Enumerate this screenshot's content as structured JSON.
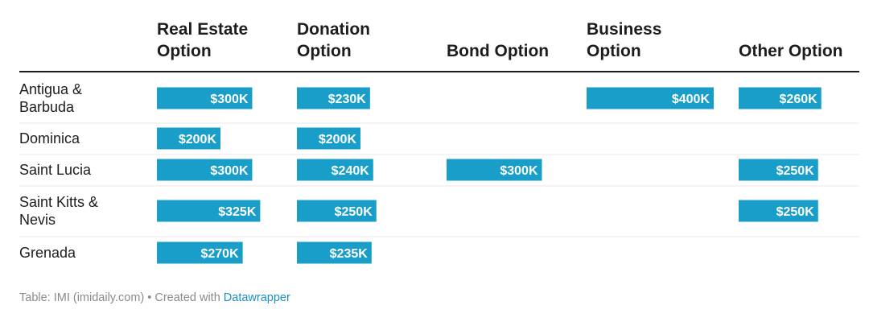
{
  "chart_data": {
    "type": "table",
    "columns": [
      {
        "label_lines": [
          "Real Estate",
          "Option"
        ]
      },
      {
        "label_lines": [
          "Donation",
          "Option"
        ]
      },
      {
        "label_lines": [
          "Bond Option"
        ]
      },
      {
        "label_lines": [
          "Business",
          "Option"
        ]
      },
      {
        "label_lines": [
          "Other Option"
        ]
      }
    ],
    "rows": [
      {
        "label_lines": [
          "Antigua &",
          "Barbuda"
        ],
        "values": [
          300,
          230,
          null,
          400,
          260
        ]
      },
      {
        "label_lines": [
          "Dominica"
        ],
        "values": [
          200,
          200,
          null,
          null,
          null
        ]
      },
      {
        "label_lines": [
          "Saint Lucia"
        ],
        "values": [
          300,
          240,
          300,
          null,
          250
        ]
      },
      {
        "label_lines": [
          "Saint Kitts &",
          "Nevis"
        ],
        "values": [
          325,
          250,
          null,
          null,
          250
        ]
      },
      {
        "label_lines": [
          "Grenada"
        ],
        "values": [
          270,
          235,
          null,
          null,
          null
        ]
      }
    ],
    "value_labels": [
      [
        "$300K",
        "$230K",
        "",
        "$400K",
        "$260K"
      ],
      [
        "$200K",
        "$200K",
        "",
        "",
        ""
      ],
      [
        "$300K",
        "$240K",
        "$300K",
        "",
        "$250K"
      ],
      [
        "$325K",
        "$250K",
        "",
        "",
        "$250K"
      ],
      [
        "$270K",
        "$235K",
        "",
        "",
        ""
      ]
    ],
    "unit": "thousand USD",
    "bar_color": "#189ec9"
  },
  "footer": {
    "source": "Table: IMI (imidaily.com) • Created with ",
    "tool": "Datawrapper"
  }
}
